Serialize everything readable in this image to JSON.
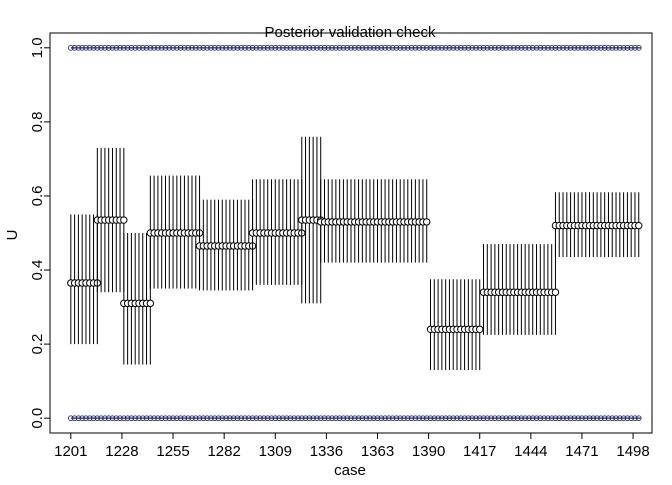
{
  "chart_data": {
    "type": "scatter",
    "title": "Posterior validation check",
    "xlabel": "case",
    "ylabel": "U",
    "xlim": [
      1190,
      1508
    ],
    "ylim": [
      -0.04,
      1.04
    ],
    "x_ticks": [
      1201,
      1228,
      1255,
      1282,
      1309,
      1336,
      1363,
      1390,
      1417,
      1444,
      1471,
      1498
    ],
    "x_tick_labels": [
      "1201",
      "1228",
      "1255",
      "1282",
      "1309",
      "1336",
      "1363",
      "1390",
      "1417",
      "1444",
      "1471",
      "1498"
    ],
    "y_ticks": [
      0.0,
      0.2,
      0.4,
      0.6,
      0.8,
      1.0
    ],
    "y_tick_labels": [
      "0.0",
      "0.2",
      "0.4",
      "0.6",
      "0.8",
      "1.0"
    ],
    "case_step": 2,
    "boundary_lines": [
      0.0,
      1.0
    ],
    "boundary_marker_color": "#2b2f80",
    "interval_color": "#000000",
    "grid": false,
    "groups": [
      {
        "x_start": 1201,
        "x_end": 1216,
        "mean": 0.365,
        "lower": 0.2,
        "upper": 0.55
      },
      {
        "x_start": 1215,
        "x_end": 1230,
        "mean": 0.535,
        "lower": 0.34,
        "upper": 0.73
      },
      {
        "x_start": 1229,
        "x_end": 1244,
        "mean": 0.31,
        "lower": 0.145,
        "upper": 0.5
      },
      {
        "x_start": 1243,
        "x_end": 1270,
        "mean": 0.5,
        "lower": 0.35,
        "upper": 0.655
      },
      {
        "x_start": 1269,
        "x_end": 1298,
        "mean": 0.465,
        "lower": 0.345,
        "upper": 0.59
      },
      {
        "x_start": 1297,
        "x_end": 1324,
        "mean": 0.5,
        "lower": 0.36,
        "upper": 0.645
      },
      {
        "x_start": 1323,
        "x_end": 1334,
        "mean": 0.535,
        "lower": 0.31,
        "upper": 0.76
      },
      {
        "x_start": 1333,
        "x_end": 1390,
        "mean": 0.53,
        "lower": 0.42,
        "upper": 0.645
      },
      {
        "x_start": 1391,
        "x_end": 1418,
        "mean": 0.24,
        "lower": 0.13,
        "upper": 0.375
      },
      {
        "x_start": 1419,
        "x_end": 1458,
        "mean": 0.34,
        "lower": 0.225,
        "upper": 0.47
      },
      {
        "x_start": 1457,
        "x_end": 1502,
        "mean": 0.52,
        "lower": 0.435,
        "upper": 0.61
      }
    ]
  }
}
